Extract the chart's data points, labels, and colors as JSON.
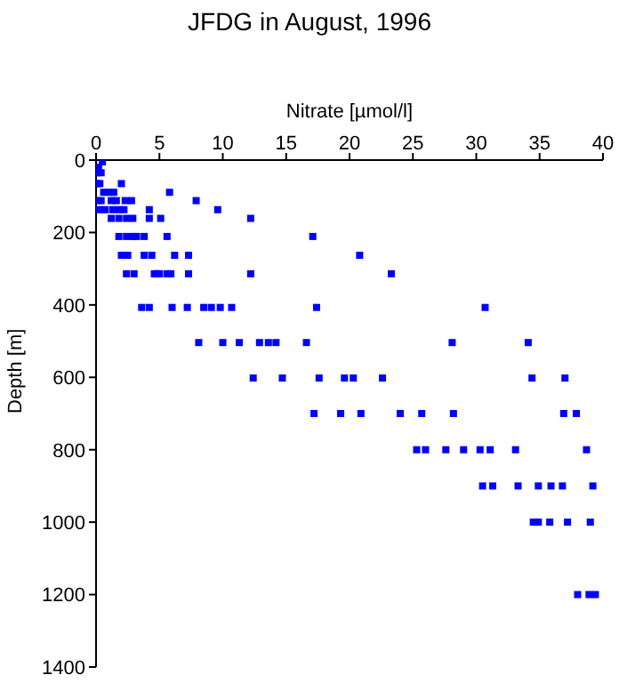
{
  "chart_data": {
    "type": "scatter",
    "title": "JFDG in August, 1996",
    "xlabel": "Nitrate [µmol/l]",
    "ylabel": "Depth [m]",
    "x": [
      0.5,
      0.2,
      0.1,
      0.4,
      0.1,
      0.3,
      2.0,
      0.6,
      1.0,
      1.4,
      5.8,
      0.1,
      0.4,
      1.2,
      1.6,
      2.3,
      2.8,
      7.9,
      0.2,
      0.7,
      1.3,
      1.8,
      2.2,
      4.2,
      9.6,
      1.2,
      1.8,
      2.4,
      2.9,
      4.2,
      5.1,
      12.2,
      1.8,
      2.4,
      2.9,
      3.2,
      3.8,
      5.6,
      17.1,
      2.0,
      2.5,
      3.8,
      4.4,
      6.2,
      7.3,
      20.8,
      2.4,
      3.0,
      4.6,
      4.8,
      5.0,
      5.6,
      5.9,
      7.3,
      12.2,
      23.3,
      3.6,
      4.2,
      6.0,
      7.2,
      8.5,
      9.1,
      9.8,
      10.7,
      17.4,
      30.7,
      8.1,
      10.0,
      11.3,
      12.9,
      13.6,
      14.2,
      16.6,
      28.1,
      34.1,
      12.4,
      14.7,
      17.6,
      19.6,
      20.3,
      22.6,
      34.4,
      37.0,
      17.2,
      19.3,
      20.9,
      24.0,
      25.7,
      28.2,
      36.9,
      37.9,
      25.3,
      26.0,
      27.6,
      29.0,
      30.3,
      31.1,
      33.1,
      38.7,
      30.5,
      31.3,
      33.3,
      34.9,
      35.9,
      36.8,
      39.2,
      34.5,
      34.9,
      35.8,
      37.2,
      39.0,
      38.0,
      38.9,
      39.4
    ],
    "values": [
      5,
      20,
      35,
      35,
      65,
      65,
      65,
      89,
      89,
      89,
      89,
      112,
      112,
      112,
      112,
      112,
      112,
      112,
      137,
      137,
      137,
      137,
      137,
      137,
      137,
      161,
      161,
      161,
      161,
      161,
      161,
      161,
      211,
      211,
      211,
      211,
      211,
      211,
      211,
      263,
      263,
      263,
      263,
      263,
      263,
      263,
      314,
      314,
      314,
      314,
      314,
      314,
      314,
      314,
      314,
      314,
      407,
      407,
      407,
      407,
      407,
      407,
      407,
      407,
      407,
      407,
      504,
      504,
      504,
      504,
      504,
      504,
      504,
      504,
      504,
      602,
      602,
      602,
      602,
      602,
      602,
      602,
      602,
      700,
      700,
      700,
      700,
      700,
      700,
      700,
      700,
      800,
      800,
      800,
      800,
      800,
      800,
      800,
      800,
      900,
      900,
      900,
      900,
      900,
      900,
      900,
      1000,
      1000,
      1000,
      1000,
      1000,
      1200,
      1200,
      1200
    ],
    "color": "#0000ff",
    "marker": "square",
    "xlim": [
      0,
      40
    ],
    "xticks": [
      0,
      5,
      10,
      15,
      20,
      25,
      30,
      35,
      40
    ],
    "ylim": [
      1400,
      0
    ],
    "yticks": [
      0,
      200,
      400,
      600,
      800,
      1000,
      1200,
      1400
    ],
    "grid": false
  }
}
